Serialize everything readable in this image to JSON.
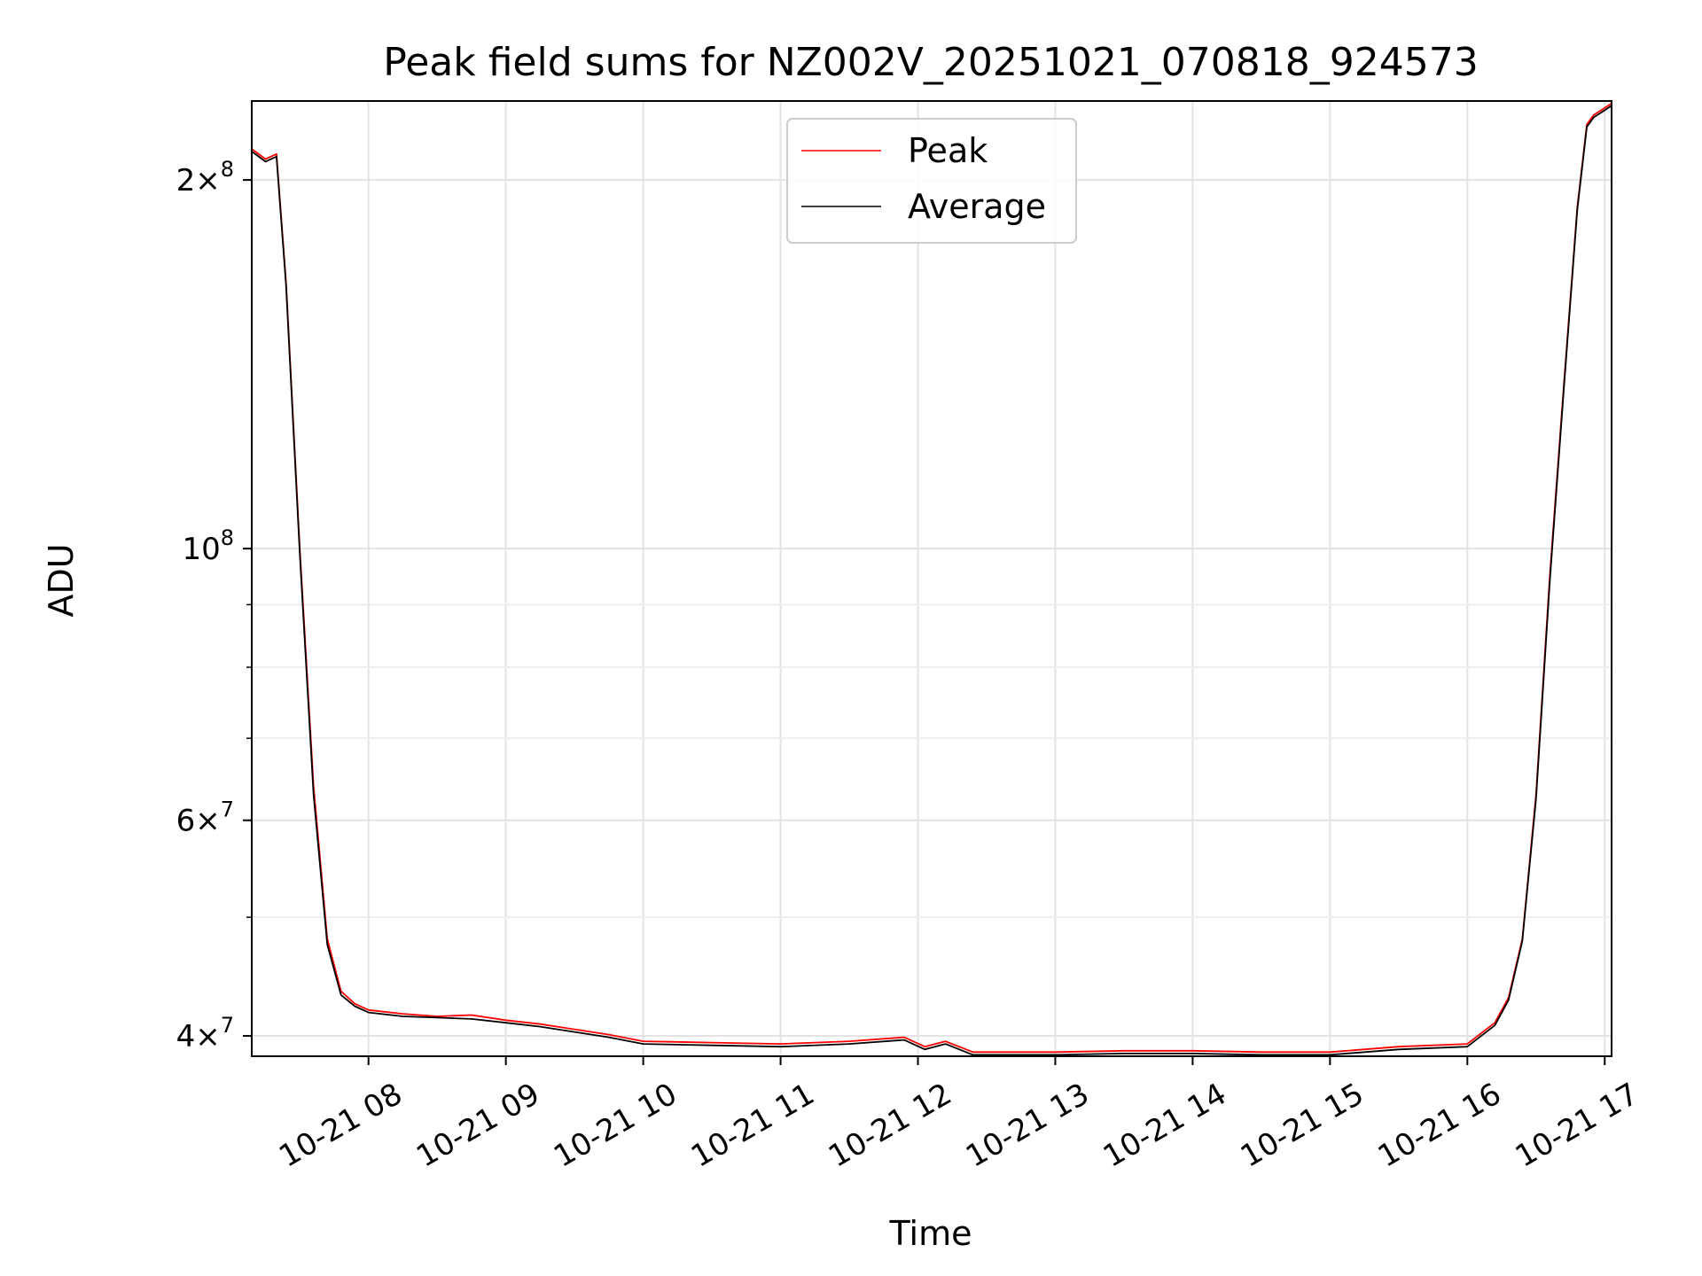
{
  "chart_data": {
    "type": "line",
    "title": "Peak field sums for NZ002V_20251021_070818_924573",
    "xlabel": "Time",
    "ylabel": "ADU",
    "yscale": "log",
    "grid": true,
    "legend_position": "upper center",
    "xlim_hours": [
      7.15,
      17.05
    ],
    "ylim": [
      38500000,
      232000000
    ],
    "x_ticks": [
      {
        "value": 8,
        "label": "10-21 08"
      },
      {
        "value": 9,
        "label": "10-21 09"
      },
      {
        "value": 10,
        "label": "10-21 10"
      },
      {
        "value": 11,
        "label": "10-21 11"
      },
      {
        "value": 12,
        "label": "10-21 12"
      },
      {
        "value": 13,
        "label": "10-21 13"
      },
      {
        "value": 14,
        "label": "10-21 14"
      },
      {
        "value": 15,
        "label": "10-21 15"
      },
      {
        "value": 16,
        "label": "10-21 16"
      },
      {
        "value": 17,
        "label": "10-21 17"
      }
    ],
    "y_ticks": [
      {
        "value": 40000000,
        "mantissa": "4",
        "exponent": "7",
        "times": true
      },
      {
        "value": 60000000,
        "mantissa": "6",
        "exponent": "7",
        "times": true
      },
      {
        "value": 100000000,
        "mantissa": "10",
        "exponent": "8",
        "times": false
      },
      {
        "value": 200000000,
        "mantissa": "2",
        "exponent": "8",
        "times": true
      }
    ],
    "y_minor_ticks": [
      50000000,
      70000000,
      80000000,
      90000000
    ],
    "series": [
      {
        "name": "Peak",
        "color": "#ff0000",
        "x": [
          7.15,
          7.25,
          7.33,
          7.4,
          7.5,
          7.6,
          7.7,
          7.8,
          7.9,
          8.0,
          8.25,
          8.5,
          8.75,
          9.0,
          9.25,
          9.5,
          9.75,
          10.0,
          10.5,
          11.0,
          11.5,
          11.9,
          12.05,
          12.2,
          12.4,
          13.0,
          13.5,
          14.0,
          14.5,
          15.0,
          15.5,
          16.0,
          16.1,
          16.2,
          16.3,
          16.4,
          16.5,
          16.6,
          16.7,
          16.8,
          16.87,
          16.92,
          17.0,
          17.05
        ],
        "values": [
          212000000,
          208000000,
          210000000,
          165000000,
          100000000,
          64000000,
          48000000,
          43500000,
          42500000,
          42000000,
          41700000,
          41500000,
          41600000,
          41200000,
          40900000,
          40500000,
          40100000,
          39600000,
          39500000,
          39400000,
          39600000,
          39900000,
          39200000,
          39600000,
          38800000,
          38800000,
          38900000,
          38900000,
          38800000,
          38800000,
          39200000,
          39400000,
          40200000,
          41000000,
          43000000,
          48000000,
          63000000,
          95000000,
          135000000,
          190000000,
          222000000,
          226000000,
          229000000,
          231000000
        ]
      },
      {
        "name": "Average",
        "color": "#000000",
        "x": [
          7.15,
          7.25,
          7.33,
          7.4,
          7.5,
          7.6,
          7.7,
          7.8,
          7.9,
          8.0,
          8.25,
          8.5,
          8.75,
          9.0,
          9.25,
          9.5,
          9.75,
          10.0,
          10.5,
          11.0,
          11.5,
          11.9,
          12.05,
          12.2,
          12.4,
          13.0,
          13.5,
          14.0,
          14.5,
          15.0,
          15.5,
          16.0,
          16.1,
          16.2,
          16.3,
          16.4,
          16.5,
          16.6,
          16.7,
          16.8,
          16.87,
          16.92,
          17.0,
          17.05
        ],
        "values": [
          211000000,
          207000000,
          209000000,
          164000000,
          99000000,
          63000000,
          47500000,
          43200000,
          42300000,
          41800000,
          41500000,
          41400000,
          41300000,
          41000000,
          40700000,
          40300000,
          39900000,
          39400000,
          39300000,
          39200000,
          39400000,
          39700000,
          39000000,
          39400000,
          38600000,
          38600000,
          38700000,
          38700000,
          38600000,
          38600000,
          39000000,
          39200000,
          40000000,
          40800000,
          42800000,
          47800000,
          62500000,
          94000000,
          134000000,
          189000000,
          221000000,
          225000000,
          228000000,
          230000000
        ]
      }
    ]
  }
}
